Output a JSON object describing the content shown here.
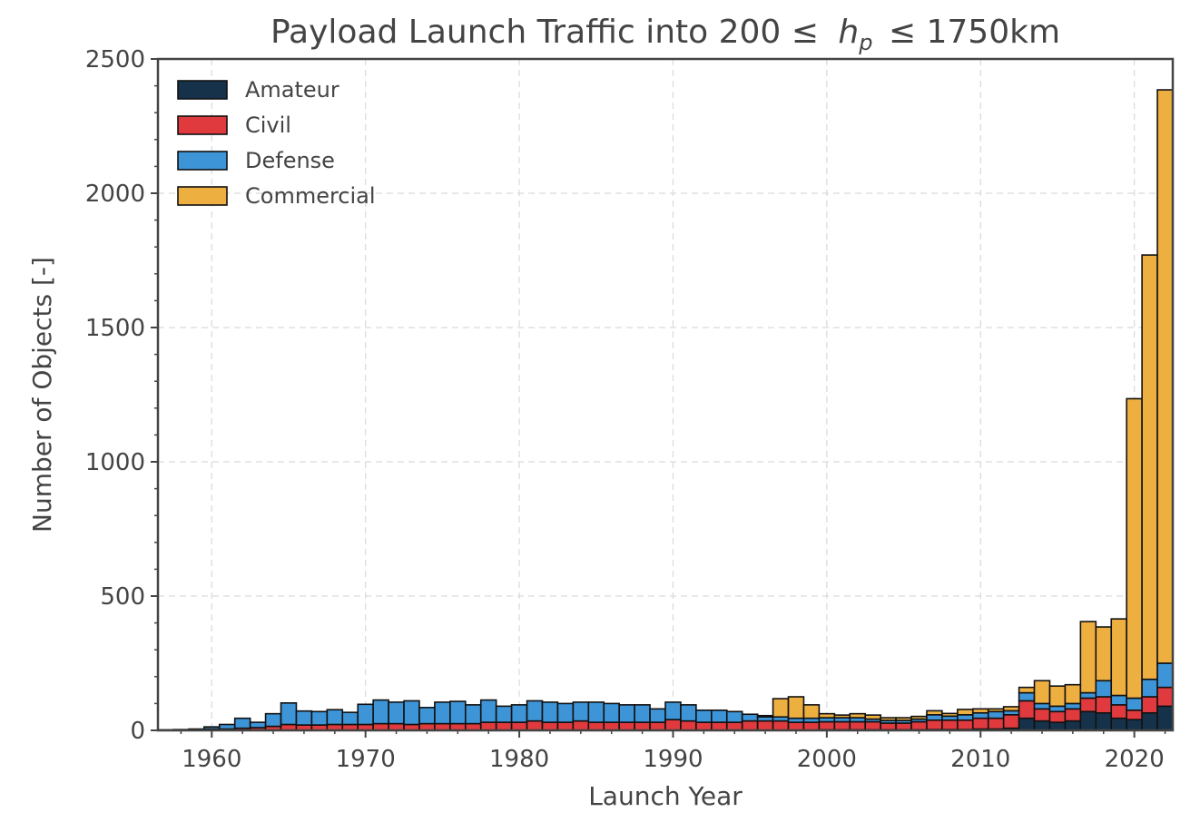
{
  "chart_data": {
    "type": "bar",
    "stacked": true,
    "title": "Payload Launch Traffic into 200 ≤ h_p ≤ 1750km",
    "title_parts": {
      "prefix": "Payload Launch Traffic into 200 ≤",
      "var_main": "h",
      "var_sub": "p",
      "suffix": "≤ 1750km"
    },
    "xlabel": "Launch Year",
    "ylabel": "Number of Objects [-]",
    "xlim": [
      1956.5,
      2022.5
    ],
    "ylim": [
      0,
      2500
    ],
    "xticks": [
      1960,
      1970,
      1980,
      1990,
      2000,
      2010,
      2020
    ],
    "yticks": [
      0,
      500,
      1000,
      1500,
      2000,
      2500
    ],
    "grid": true,
    "legend_position": "top-left",
    "x": [
      1957,
      1958,
      1959,
      1960,
      1961,
      1962,
      1963,
      1964,
      1965,
      1966,
      1967,
      1968,
      1969,
      1970,
      1971,
      1972,
      1973,
      1974,
      1975,
      1976,
      1977,
      1978,
      1979,
      1980,
      1981,
      1982,
      1983,
      1984,
      1985,
      1986,
      1987,
      1988,
      1989,
      1990,
      1991,
      1992,
      1993,
      1994,
      1995,
      1996,
      1997,
      1998,
      1999,
      2000,
      2001,
      2002,
      2003,
      2004,
      2005,
      2006,
      2007,
      2008,
      2009,
      2010,
      2011,
      2012,
      2013,
      2014,
      2015,
      2016,
      2017,
      2018,
      2019,
      2020,
      2021,
      2022
    ],
    "series": [
      {
        "name": "Amateur",
        "color": "#16324a",
        "values": [
          0,
          0,
          0,
          0,
          0,
          0,
          0,
          0,
          0,
          0,
          0,
          0,
          0,
          0,
          0,
          0,
          0,
          0,
          0,
          0,
          0,
          0,
          0,
          0,
          0,
          0,
          0,
          0,
          0,
          0,
          0,
          0,
          0,
          0,
          0,
          0,
          0,
          0,
          0,
          0,
          0,
          0,
          0,
          2,
          2,
          2,
          2,
          2,
          2,
          2,
          3,
          3,
          3,
          5,
          5,
          8,
          45,
          35,
          30,
          35,
          70,
          65,
          45,
          40,
          65,
          90
        ]
      },
      {
        "name": "Civil",
        "color": "#e03a3e",
        "values": [
          0,
          0,
          2,
          5,
          5,
          8,
          10,
          15,
          22,
          20,
          20,
          22,
          22,
          22,
          25,
          25,
          22,
          25,
          25,
          25,
          25,
          30,
          30,
          30,
          35,
          30,
          30,
          35,
          30,
          30,
          30,
          30,
          30,
          40,
          35,
          30,
          30,
          30,
          35,
          35,
          35,
          30,
          30,
          30,
          30,
          30,
          30,
          25,
          25,
          30,
          35,
          35,
          35,
          40,
          40,
          50,
          65,
          45,
          40,
          45,
          50,
          60,
          50,
          35,
          60,
          70
        ]
      },
      {
        "name": "Defense",
        "color": "#3d94d6",
        "values": [
          2,
          3,
          3,
          8,
          17,
          37,
          20,
          47,
          80,
          52,
          50,
          55,
          45,
          75,
          88,
          80,
          88,
          60,
          80,
          83,
          70,
          83,
          60,
          65,
          75,
          75,
          70,
          70,
          75,
          70,
          65,
          65,
          50,
          65,
          60,
          45,
          45,
          40,
          25,
          15,
          15,
          15,
          15,
          15,
          15,
          15,
          10,
          10,
          10,
          10,
          20,
          15,
          20,
          20,
          25,
          15,
          30,
          20,
          20,
          20,
          20,
          60,
          35,
          45,
          65,
          90
        ]
      },
      {
        "name": "Commercial",
        "color": "#eeaf41",
        "values": [
          0,
          0,
          0,
          0,
          0,
          0,
          0,
          0,
          0,
          0,
          0,
          0,
          0,
          0,
          0,
          0,
          0,
          0,
          0,
          0,
          0,
          0,
          0,
          0,
          0,
          0,
          0,
          0,
          0,
          0,
          0,
          0,
          0,
          0,
          0,
          0,
          0,
          0,
          0,
          5,
          68,
          80,
          50,
          15,
          10,
          15,
          15,
          10,
          10,
          10,
          15,
          10,
          20,
          15,
          10,
          15,
          20,
          85,
          75,
          70,
          265,
          200,
          285,
          1115,
          1580,
          2135
        ]
      }
    ]
  }
}
